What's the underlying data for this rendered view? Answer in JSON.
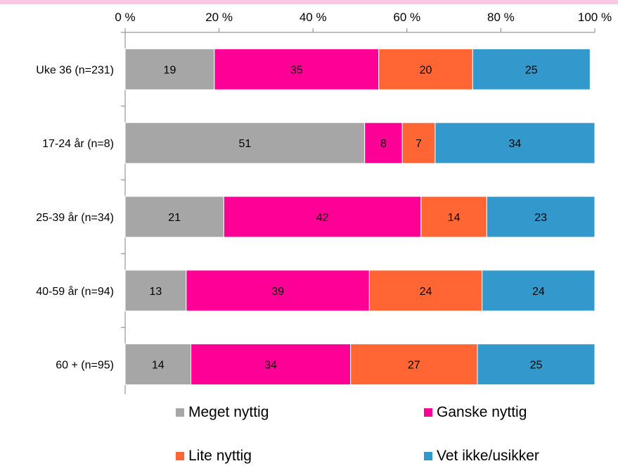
{
  "chart_data": {
    "type": "bar",
    "orientation": "horizontal",
    "stacked": true,
    "categories": [
      "Uke 36 (n=231)",
      "17-24 år (n=8)",
      "25-39 år (n=34)",
      "40-59 år (n=94)",
      "60 + (n=95)"
    ],
    "series": [
      {
        "name": "Meget nyttig",
        "color": "#a6a6a6",
        "values": [
          19,
          51,
          21,
          13,
          14
        ]
      },
      {
        "name": "Ganske nyttig",
        "color": "#ff0097",
        "values": [
          35,
          8,
          42,
          39,
          34
        ]
      },
      {
        "name": "Lite nyttig",
        "color": "#ff6633",
        "values": [
          20,
          7,
          14,
          24,
          27
        ]
      },
      {
        "name": "Vet ikke/usikker",
        "color": "#3399cc",
        "values": [
          25,
          34,
          23,
          24,
          25
        ]
      }
    ],
    "x_ticks": [
      "0 %",
      "20 %",
      "40 %",
      "60 %",
      "80 %",
      "100 %"
    ],
    "xlim": [
      0,
      100
    ],
    "x_axis_position": "top",
    "grid": false,
    "legend_position": "bottom",
    "title": "",
    "xlabel": "",
    "ylabel": ""
  }
}
